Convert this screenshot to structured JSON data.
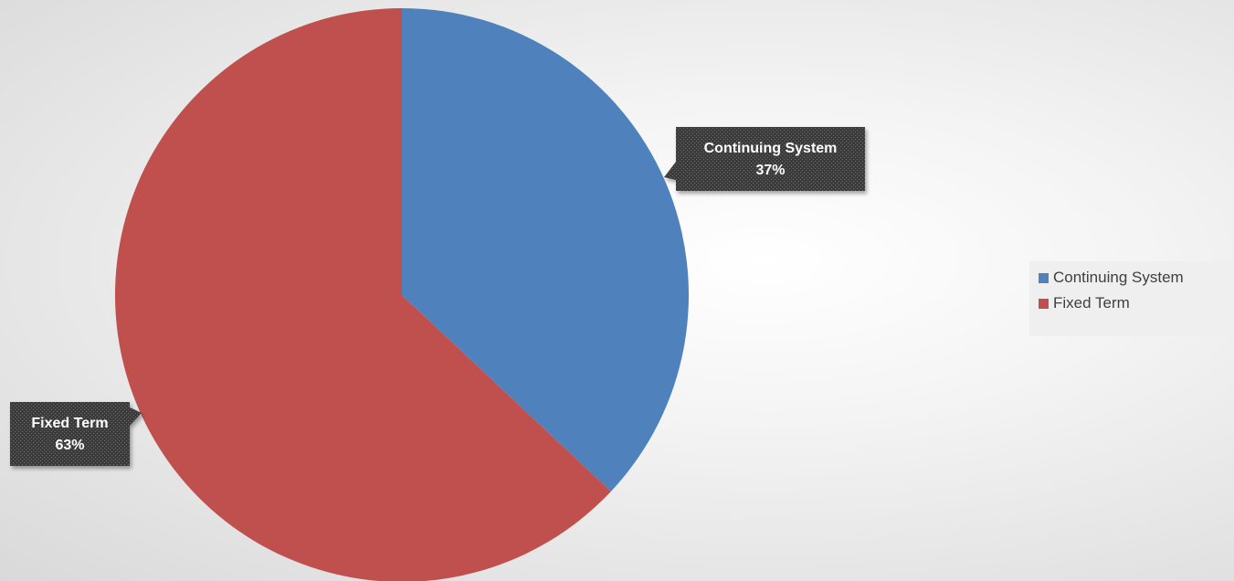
{
  "chart_data": {
    "type": "pie",
    "categories": [
      "Continuing System",
      "Fixed Term"
    ],
    "values": [
      37,
      63
    ],
    "data_labels": [
      {
        "category": "Continuing System",
        "percent": "37%"
      },
      {
        "category": "Fixed Term",
        "percent": "63%"
      }
    ],
    "colors": [
      "#4f81bd",
      "#c0504d"
    ],
    "start_angle_deg": 0,
    "direction": "clockwise",
    "legend": {
      "position": "right",
      "entries": [
        "Continuing System",
        "Fixed Term"
      ]
    },
    "label_box_color": "#404040"
  }
}
